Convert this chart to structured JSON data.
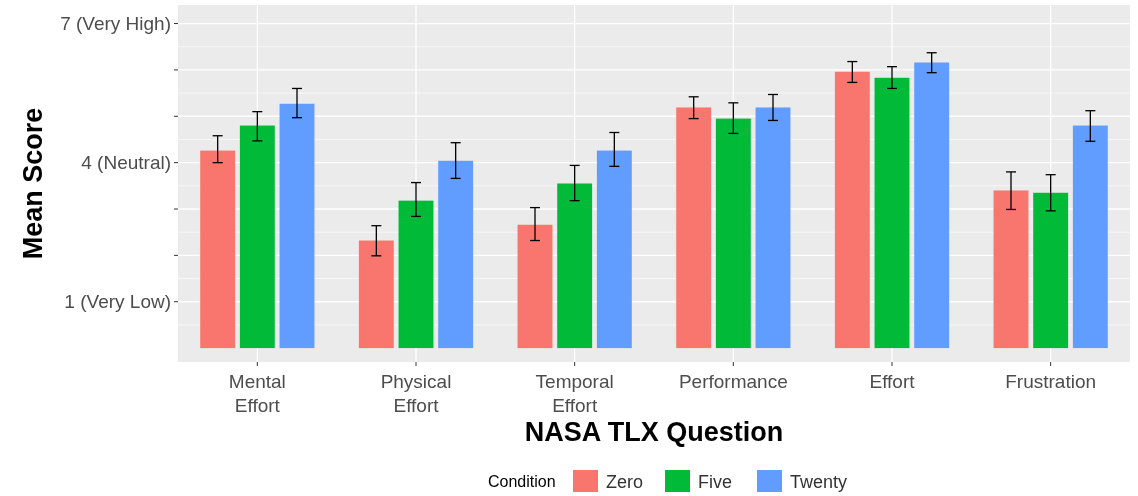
{
  "chart_data": {
    "type": "bar",
    "xlabel": "NASA TLX Question",
    "ylabel": "Mean Score",
    "legend_title": "Condition",
    "categories": [
      "Mental Effort",
      "Physical Effort",
      "Temporal Effort",
      "Performance",
      "Effort",
      "Frustration"
    ],
    "series": [
      {
        "name": "Zero",
        "color": "#f8766d",
        "values": [
          4.26,
          2.32,
          2.66,
          5.19,
          5.96,
          3.4
        ],
        "errors": [
          [
            4.0,
            4.58
          ],
          [
            1.99,
            2.64
          ],
          [
            2.32,
            3.03
          ],
          [
            4.95,
            5.42
          ],
          [
            5.73,
            6.18
          ],
          [
            2.99,
            3.8
          ]
        ]
      },
      {
        "name": "Five",
        "color": "#00ba38",
        "values": [
          4.8,
          3.18,
          3.55,
          4.95,
          5.83,
          3.35
        ],
        "errors": [
          [
            4.47,
            5.1
          ],
          [
            2.84,
            3.57
          ],
          [
            3.18,
            3.94
          ],
          [
            4.63,
            5.29
          ],
          [
            5.6,
            6.07
          ],
          [
            2.96,
            3.74
          ]
        ]
      },
      {
        "name": "Twenty",
        "color": "#619cff",
        "values": [
          5.27,
          4.04,
          4.26,
          5.19,
          6.16,
          4.8
        ],
        "errors": [
          [
            4.97,
            5.6
          ],
          [
            3.66,
            4.43
          ],
          [
            3.92,
            4.65
          ],
          [
            4.91,
            5.47
          ],
          [
            5.94,
            6.37
          ],
          [
            4.46,
            5.12
          ]
        ]
      }
    ],
    "ylim": [
      -0.3,
      7.4
    ],
    "yticks": [
      {
        "value": 1,
        "label": "1 (Very Low)"
      },
      {
        "value": 2,
        "label": null
      },
      {
        "value": 3,
        "label": null
      },
      {
        "value": 4,
        "label": "4 (Neutral)"
      },
      {
        "value": 5,
        "label": null
      },
      {
        "value": 6,
        "label": null
      },
      {
        "value": 7,
        "label": "7 (Very High)"
      }
    ],
    "grid": true,
    "legend": "bottom"
  }
}
